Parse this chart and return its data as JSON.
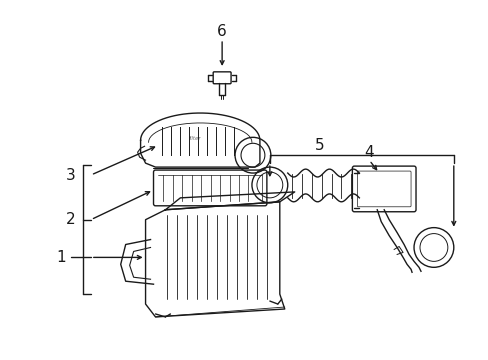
{
  "bg_color": "#ffffff",
  "line_color": "#1a1a1a",
  "figsize": [
    4.89,
    3.6
  ],
  "dpi": 100,
  "label_fontsize": 11,
  "label_color": "#1a1a1a"
}
